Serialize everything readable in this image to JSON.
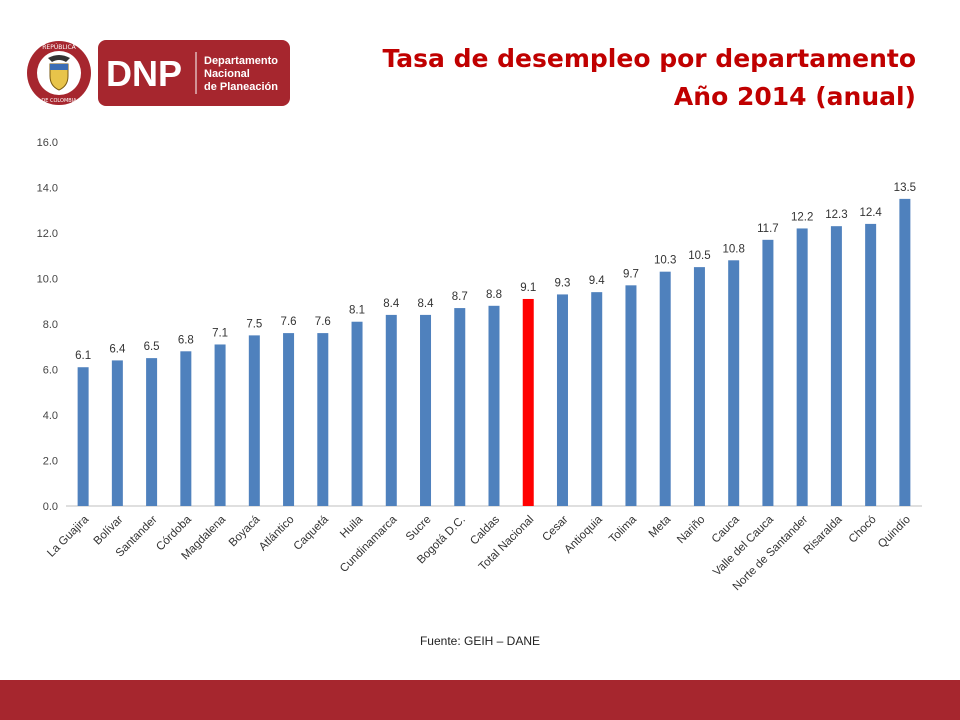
{
  "header": {
    "logo_letters": "DNP",
    "logo_name_lines": [
      "Departamento",
      "Nacional",
      "de Planeación"
    ],
    "seal_top_text": "REPÚBLICA",
    "seal_bottom_text": "DE COLOMBIA",
    "title_line1": "Tasa de desempleo por departamento",
    "title_line2": "Año 2014 (anual)"
  },
  "colors": {
    "bar": "#4f81bd",
    "highlight": "#ff0000",
    "brand": "#a6262e",
    "title": "#c00000"
  },
  "chart_data": {
    "type": "bar",
    "title": "Tasa de desempleo por departamento Año 2014 (anual)",
    "xlabel": "",
    "ylabel": "",
    "ylim": [
      0,
      16
    ],
    "yticks": [
      "0.0",
      "2.0",
      "4.0",
      "6.0",
      "8.0",
      "10.0",
      "12.0",
      "14.0",
      "16.0"
    ],
    "grid": false,
    "categories": [
      "La Guajira",
      "Bolívar",
      "Santander",
      "Córdoba",
      "Magdalena",
      "Boyacá",
      "Atlántico",
      "Caquetá",
      "Huila",
      "Cundinamarca",
      "Sucre",
      "Bogotá D.C.",
      "Caldas",
      "Total Nacional",
      "Cesar",
      "Antioquia",
      "Tolima",
      "Meta",
      "Nariño",
      "Cauca",
      "Valle del Cauca",
      "Norte de Santander",
      "Risaralda",
      "Chocó",
      "Quindío"
    ],
    "values": [
      6.1,
      6.4,
      6.5,
      6.8,
      7.1,
      7.5,
      7.6,
      7.6,
      8.1,
      8.4,
      8.4,
      8.7,
      8.8,
      9.1,
      9.3,
      9.4,
      9.7,
      10.3,
      10.5,
      10.8,
      11.7,
      12.2,
      12.3,
      12.4,
      13.5
    ],
    "value_labels": [
      "6.1",
      "6.4",
      "6.5",
      "6.8",
      "7.1",
      "7.5",
      "7.6",
      "7.6",
      "8.1",
      "8.4",
      "8.4",
      "8.7",
      "8.8",
      "9.1",
      "9.3",
      "9.4",
      "9.7",
      "10.3",
      "10.5",
      "10.8",
      "11.7",
      "12.2",
      "12.3",
      "12.4",
      "13.5"
    ],
    "highlight_category": "Total Nacional"
  },
  "source_text": "Fuente: GEIH – DANE"
}
